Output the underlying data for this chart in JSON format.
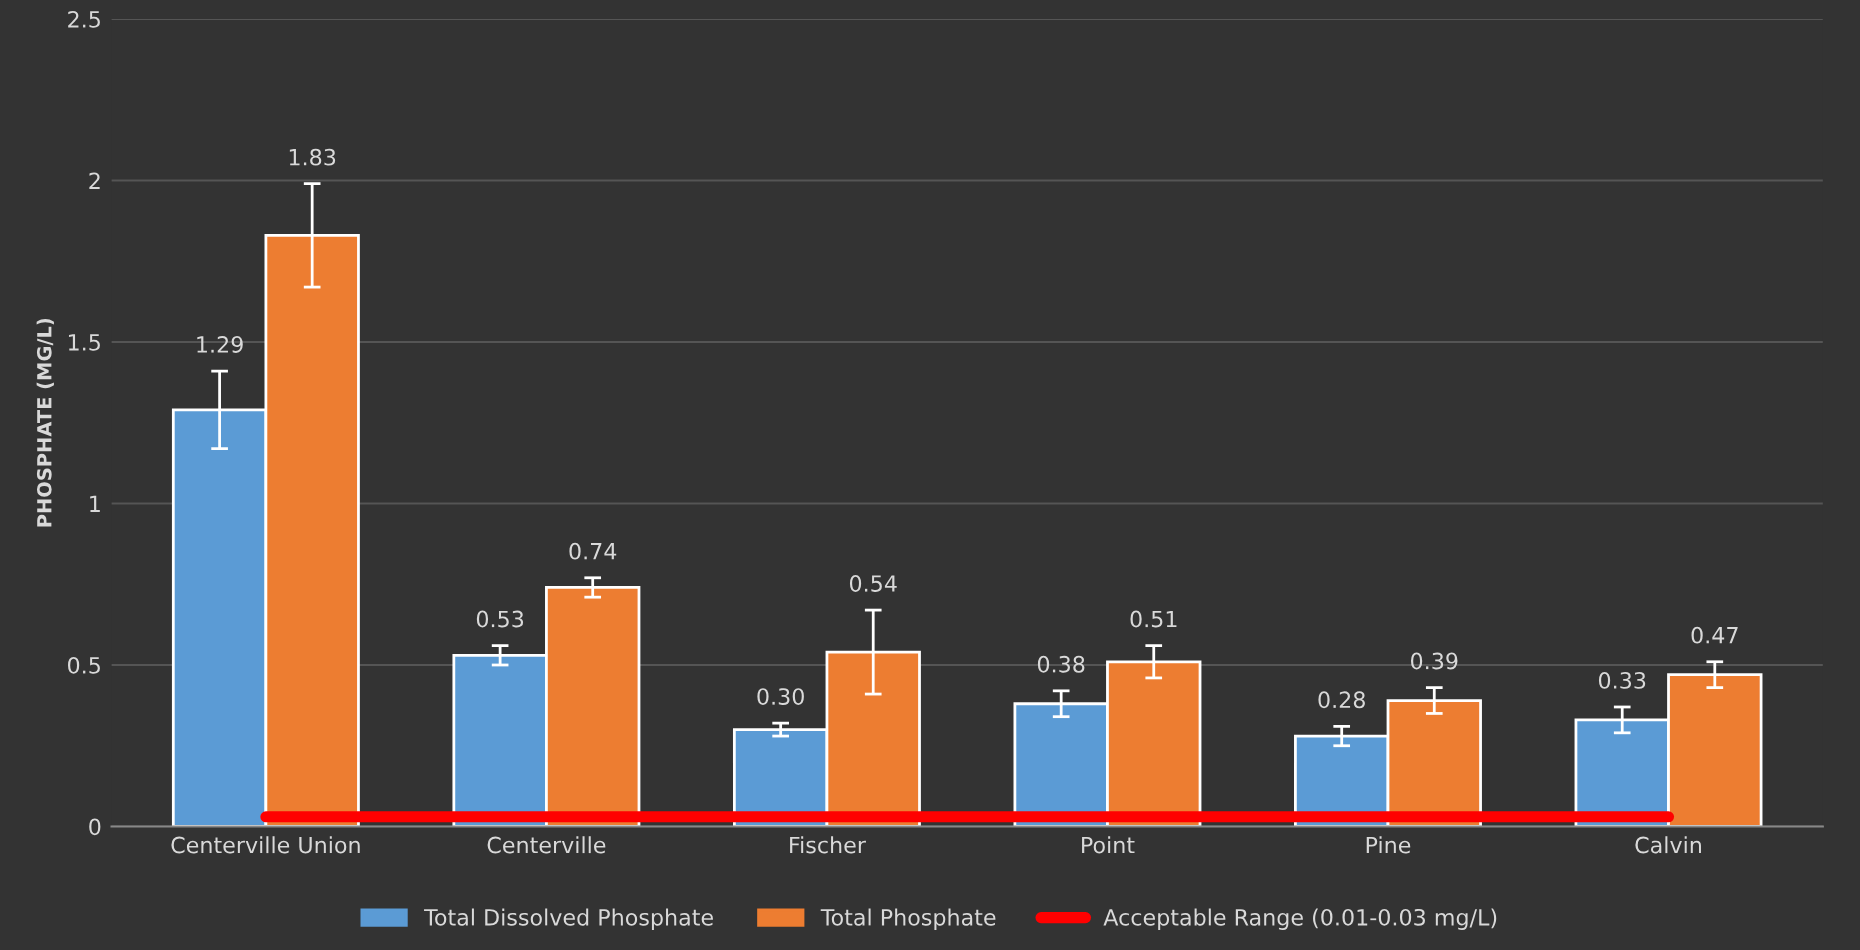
{
  "chart_data": {
    "type": "bar",
    "ylabel": "PHOSPHATE (MG/L)",
    "categories": [
      "Centerville Union",
      "Centerville",
      "Fischer",
      "Point",
      "Pine",
      "Calvin"
    ],
    "series": [
      {
        "name": "Total Dissolved Phosphate",
        "color": "#5b9bd5",
        "values": [
          1.29,
          0.53,
          0.3,
          0.38,
          0.28,
          0.33
        ],
        "errors": [
          0.12,
          0.03,
          0.02,
          0.04,
          0.03,
          0.04
        ],
        "value_labels": [
          "1.29",
          "0.53",
          "0.30",
          "0.38",
          "0.28",
          "0.33"
        ]
      },
      {
        "name": "Total Phosphate",
        "color": "#ed7d31",
        "values": [
          1.83,
          0.74,
          0.54,
          0.51,
          0.39,
          0.47
        ],
        "errors": [
          0.16,
          0.03,
          0.13,
          0.05,
          0.04,
          0.04
        ],
        "value_labels": [
          "1.83",
          "0.74",
          "0.54",
          "0.51",
          "0.39",
          "0.47"
        ]
      },
      {
        "name": "Acceptable Range (0.01-0.03 mg/L)",
        "type": "line",
        "color": "#ff0000",
        "values": [
          0.03,
          0.03,
          0.03,
          0.03,
          0.03,
          0.03
        ]
      }
    ],
    "ylim": [
      0,
      2.5
    ],
    "yticks": [
      0,
      0.5,
      1,
      1.5,
      2,
      2.5
    ],
    "grid": "y",
    "legend": "bottom"
  }
}
